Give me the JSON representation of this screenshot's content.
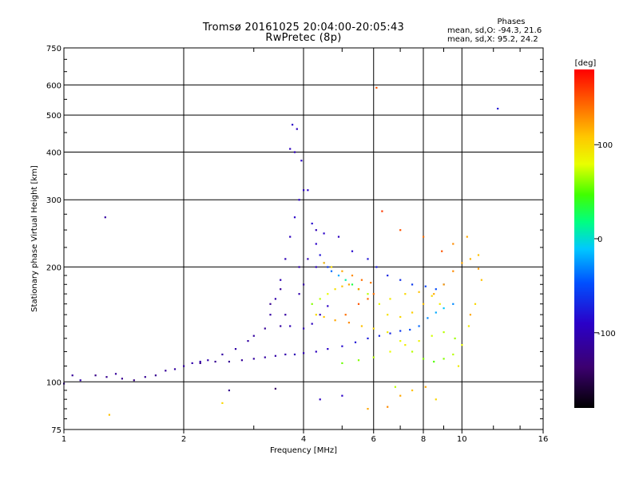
{
  "header": {
    "title_line1": "Tromsø 20161025 20:04:00-20:05:43",
    "title_line2": "RwPretec (8p)"
  },
  "phases_box": {
    "heading": "Phases",
    "line_o": "mean, sd,O: -94.3, 21.6",
    "line_x": "mean, sd,X:  95.2, 24.2"
  },
  "colorbar": {
    "unit_label": "[deg]",
    "ticks": [
      {
        "value": 100,
        "label": "100"
      },
      {
        "value": 0,
        "label": "0"
      },
      {
        "value": -100,
        "label": "-100"
      }
    ],
    "range": [
      -180,
      180
    ],
    "colormap": "rainbow"
  },
  "chart_data": {
    "type": "scatter",
    "title": "Tromsø 20161025 20:04:00-20:05:43",
    "subtitle": "RwPretec (8p)",
    "xlabel": "Frequency [MHz]",
    "ylabel": "Stationary phase Virtual Height [km]",
    "xscale": "log",
    "yscale": "log",
    "xlim": [
      1,
      16
    ],
    "ylim": [
      75,
      750
    ],
    "xticks": [
      {
        "value": 1,
        "label": "1"
      },
      {
        "value": 2,
        "label": "2"
      },
      {
        "value": 4,
        "label": "4"
      },
      {
        "value": 6,
        "label": "6"
      },
      {
        "value": 8,
        "label": "8"
      },
      {
        "value": 10,
        "label": "10"
      },
      {
        "value": 16,
        "label": "16"
      }
    ],
    "yticks": [
      {
        "value": 75,
        "label": "75"
      },
      {
        "value": 100,
        "label": "100"
      },
      {
        "value": 200,
        "label": "200"
      },
      {
        "value": 300,
        "label": "300"
      },
      {
        "value": 400,
        "label": "400"
      },
      {
        "value": 500,
        "label": "500"
      },
      {
        "value": 600,
        "label": "600"
      },
      {
        "value": 750,
        "label": "750"
      }
    ],
    "grid": true,
    "color_by": "phase [deg]",
    "series": [
      {
        "name": "O-mode",
        "points": [
          [
            1.0,
            99,
            -110
          ],
          [
            1.05,
            104,
            -115
          ],
          [
            1.1,
            101,
            -105
          ],
          [
            1.2,
            104,
            -125
          ],
          [
            1.28,
            103,
            -120
          ],
          [
            1.35,
            105,
            -115
          ],
          [
            1.4,
            102,
            -120
          ],
          [
            1.5,
            101,
            -125
          ],
          [
            1.6,
            103,
            -118
          ],
          [
            1.7,
            104,
            -120
          ],
          [
            1.8,
            107,
            -115
          ],
          [
            1.9,
            108,
            -112
          ],
          [
            2.0,
            110,
            -110
          ],
          [
            2.1,
            112,
            -105
          ],
          [
            2.2,
            113,
            -100
          ],
          [
            2.3,
            114,
            -105
          ],
          [
            2.5,
            118,
            -110
          ],
          [
            2.7,
            122,
            -108
          ],
          [
            2.9,
            128,
            -110
          ],
          [
            3.0,
            132,
            -112
          ],
          [
            3.2,
            138,
            -115
          ],
          [
            3.3,
            150,
            -110
          ],
          [
            3.4,
            165,
            -105
          ],
          [
            3.5,
            185,
            -100
          ],
          [
            3.6,
            210,
            -100
          ],
          [
            3.7,
            240,
            -95
          ],
          [
            3.8,
            270,
            -90
          ],
          [
            3.9,
            300,
            -90
          ],
          [
            4.0,
            318,
            -95
          ],
          [
            4.1,
            318,
            -90
          ],
          [
            4.2,
            260,
            -85
          ],
          [
            4.3,
            230,
            -90
          ],
          [
            4.4,
            215,
            -80
          ],
          [
            4.5,
            205,
            -70
          ],
          [
            4.6,
            200,
            -60
          ],
          [
            4.7,
            195,
            -40
          ],
          [
            4.9,
            190,
            -20
          ],
          [
            5.1,
            185,
            10
          ],
          [
            5.3,
            180,
            30
          ],
          [
            5.5,
            175,
            50
          ],
          [
            5.8,
            170,
            70
          ],
          [
            2.2,
            112,
            -125
          ],
          [
            2.4,
            113,
            -120
          ],
          [
            2.6,
            113,
            -118
          ],
          [
            2.8,
            114,
            -115
          ],
          [
            3.0,
            115,
            -112
          ],
          [
            3.2,
            116,
            -110
          ],
          [
            3.4,
            117,
            -108
          ],
          [
            3.6,
            118,
            -105
          ],
          [
            3.8,
            118,
            -100
          ],
          [
            4.0,
            119,
            -100
          ],
          [
            4.3,
            120,
            -95
          ],
          [
            4.6,
            122,
            -90
          ],
          [
            5.0,
            124,
            -85
          ],
          [
            5.4,
            127,
            -80
          ],
          [
            5.8,
            130,
            -75
          ],
          [
            6.2,
            132,
            -70
          ],
          [
            6.6,
            134,
            -70
          ],
          [
            7.0,
            136,
            -60
          ],
          [
            7.4,
            137,
            -50
          ],
          [
            7.8,
            140,
            -40
          ],
          [
            8.2,
            147,
            -30
          ],
          [
            8.6,
            152,
            -20
          ],
          [
            9.0,
            156,
            -10
          ],
          [
            9.5,
            160,
            -30
          ],
          [
            3.7,
            408,
            -95
          ],
          [
            3.8,
            400,
            -100
          ],
          [
            3.75,
            472,
            -90
          ],
          [
            3.85,
            460,
            -95
          ],
          [
            3.95,
            380,
            -90
          ],
          [
            4.3,
            250,
            -100
          ],
          [
            4.5,
            245,
            -90
          ],
          [
            4.9,
            240,
            -95
          ],
          [
            5.3,
            220,
            -85
          ],
          [
            5.8,
            210,
            -80
          ],
          [
            6.1,
            200,
            -75
          ],
          [
            6.5,
            190,
            -70
          ],
          [
            7.0,
            185,
            -65
          ],
          [
            7.5,
            180,
            -60
          ],
          [
            8.1,
            178,
            -55
          ],
          [
            8.6,
            175,
            -50
          ],
          [
            9.0,
            180,
            -45
          ],
          [
            12.3,
            520,
            -80
          ],
          [
            1.27,
            270,
            -110
          ],
          [
            2.6,
            95,
            -120
          ],
          [
            3.4,
            96,
            -140
          ],
          [
            4.4,
            90,
            -95
          ],
          [
            5.0,
            92,
            -90
          ],
          [
            3.5,
            140,
            -110
          ],
          [
            3.7,
            140,
            -100
          ],
          [
            4.0,
            138,
            -100
          ],
          [
            4.2,
            142,
            -95
          ],
          [
            4.4,
            150,
            -95
          ],
          [
            4.6,
            158,
            -90
          ],
          [
            3.3,
            160,
            -120
          ],
          [
            3.5,
            175,
            -115
          ],
          [
            3.9,
            200,
            -105
          ],
          [
            4.1,
            210,
            -100
          ],
          [
            4.3,
            200,
            -95
          ],
          [
            3.6,
            150,
            -110
          ],
          [
            3.9,
            170,
            -105
          ],
          [
            4.0,
            180,
            -110
          ]
        ]
      },
      {
        "name": "X-mode",
        "points": [
          [
            4.2,
            160,
            60
          ],
          [
            4.4,
            165,
            70
          ],
          [
            4.6,
            170,
            80
          ],
          [
            4.8,
            175,
            95
          ],
          [
            5.0,
            178,
            110
          ],
          [
            5.2,
            180,
            120
          ],
          [
            5.5,
            175,
            125
          ],
          [
            4.5,
            205,
            110
          ],
          [
            4.7,
            200,
            100
          ],
          [
            5.0,
            195,
            120
          ],
          [
            5.3,
            190,
            130
          ],
          [
            5.6,
            185,
            140
          ],
          [
            5.9,
            182,
            135
          ],
          [
            4.3,
            150,
            100
          ],
          [
            4.5,
            148,
            110
          ],
          [
            4.8,
            145,
            120
          ],
          [
            5.2,
            143,
            130
          ],
          [
            5.6,
            140,
            110
          ],
          [
            6.0,
            138,
            100
          ],
          [
            6.5,
            135,
            90
          ],
          [
            7.0,
            128,
            80
          ],
          [
            7.5,
            120,
            70
          ],
          [
            8.0,
            115,
            60
          ],
          [
            8.5,
            113,
            50
          ],
          [
            9.0,
            115,
            60
          ],
          [
            9.5,
            118,
            70
          ],
          [
            10.0,
            125,
            80
          ],
          [
            10.4,
            140,
            90
          ],
          [
            10.8,
            160,
            100
          ],
          [
            11.2,
            185,
            110
          ],
          [
            6.5,
            150,
            95
          ],
          [
            7.0,
            148,
            100
          ],
          [
            7.5,
            152,
            105
          ],
          [
            8.0,
            160,
            110
          ],
          [
            8.5,
            170,
            120
          ],
          [
            9.0,
            180,
            125
          ],
          [
            9.5,
            195,
            130
          ],
          [
            10.0,
            205,
            120
          ],
          [
            10.5,
            210,
            115
          ],
          [
            11.0,
            215,
            110
          ],
          [
            6.2,
            160,
            80
          ],
          [
            6.6,
            165,
            90
          ],
          [
            7.2,
            170,
            100
          ],
          [
            7.8,
            172,
            110
          ],
          [
            8.4,
            168,
            100
          ],
          [
            8.8,
            160,
            90
          ],
          [
            5.0,
            112,
            55
          ],
          [
            5.5,
            114,
            60
          ],
          [
            6.0,
            116,
            70
          ],
          [
            6.6,
            120,
            80
          ],
          [
            7.2,
            125,
            90
          ],
          [
            7.8,
            128,
            85
          ],
          [
            8.4,
            132,
            75
          ],
          [
            9.0,
            135,
            70
          ],
          [
            9.6,
            130,
            65
          ],
          [
            6.1,
            590,
            150
          ],
          [
            6.3,
            280,
            160
          ],
          [
            7.0,
            250,
            150
          ],
          [
            8.0,
            240,
            140
          ],
          [
            8.9,
            220,
            150
          ],
          [
            9.5,
            230,
            130
          ],
          [
            10.3,
            240,
            120
          ],
          [
            5.1,
            150,
            140
          ],
          [
            5.5,
            160,
            150
          ],
          [
            5.8,
            165,
            145
          ],
          [
            6.0,
            170,
            140
          ],
          [
            1.3,
            82,
            110
          ],
          [
            2.5,
            88,
            100
          ],
          [
            5.8,
            85,
            120
          ],
          [
            6.5,
            86,
            130
          ],
          [
            7.0,
            92,
            120
          ],
          [
            7.5,
            95,
            110
          ],
          [
            8.1,
            97,
            120
          ],
          [
            8.6,
            90,
            100
          ],
          [
            6.8,
            97,
            70
          ],
          [
            9.8,
            110,
            90
          ],
          [
            10.5,
            150,
            120
          ],
          [
            11.0,
            198,
            125
          ]
        ]
      }
    ]
  }
}
